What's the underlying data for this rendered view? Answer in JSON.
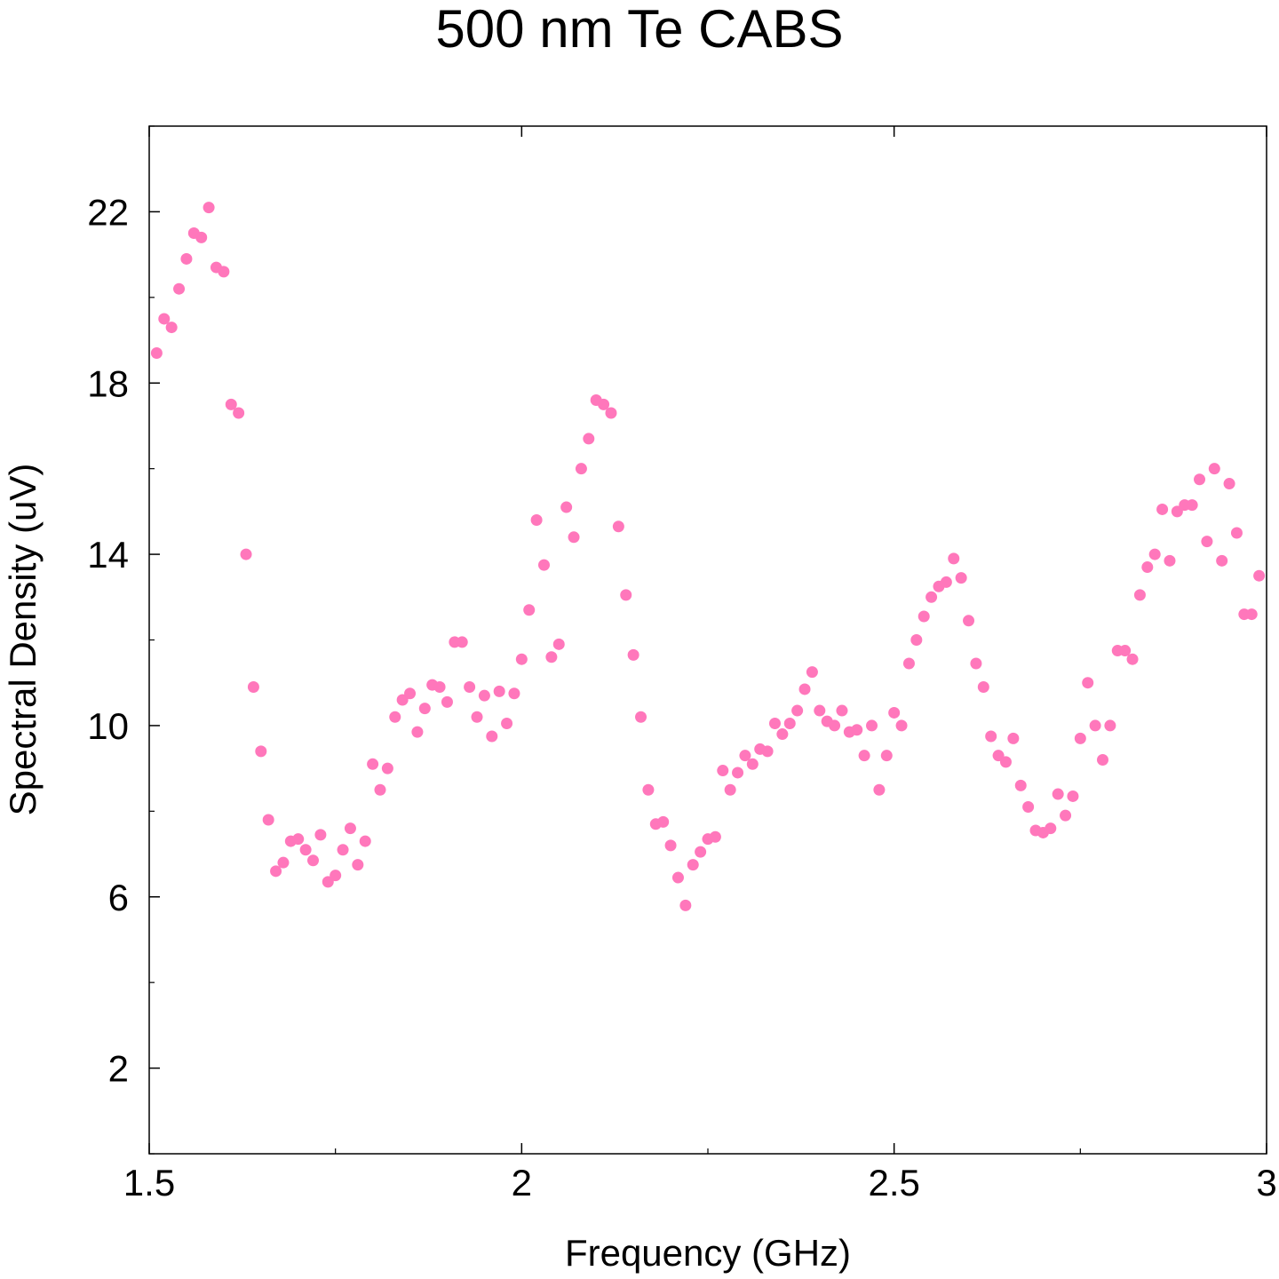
{
  "chart_data": {
    "type": "scatter",
    "title": "500 nm Te CABS",
    "xlabel": "Frequency (GHz)",
    "ylabel": "Spectral Density (uV)",
    "xlim": [
      1.5,
      3.0
    ],
    "ylim": [
      0.0,
      24.0
    ],
    "xticks": [
      1.5,
      2,
      2.5,
      3
    ],
    "xtick_labels": [
      "1.5",
      "2",
      "2.5",
      "3"
    ],
    "yticks": [
      2,
      6,
      10,
      14,
      18,
      22
    ],
    "ytick_labels": [
      "2",
      "6",
      "10",
      "14",
      "18",
      "22"
    ],
    "grid": false,
    "marker_color": "#ff77bb",
    "series": [
      {
        "x": [
          1.51,
          1.52,
          1.53,
          1.54,
          1.55,
          1.56,
          1.57,
          1.58,
          1.59,
          1.6,
          1.61,
          1.62,
          1.63,
          1.64,
          1.65,
          1.66,
          1.67,
          1.68,
          1.69,
          1.7,
          1.71,
          1.72,
          1.73,
          1.74,
          1.75,
          1.76,
          1.77,
          1.78,
          1.79,
          1.8,
          1.81,
          1.82,
          1.83,
          1.84,
          1.85,
          1.86,
          1.87,
          1.88,
          1.89,
          1.9,
          1.91,
          1.92,
          1.93,
          1.94,
          1.95,
          1.96,
          1.97,
          1.98,
          1.99,
          2.0,
          2.01,
          2.02,
          2.03,
          2.04,
          2.05,
          2.06,
          2.07,
          2.08,
          2.09,
          2.1,
          2.11,
          2.12,
          2.13,
          2.14,
          2.15,
          2.16,
          2.17,
          2.18,
          2.19,
          2.2,
          2.21,
          2.22,
          2.23,
          2.24,
          2.25,
          2.26,
          2.27,
          2.28,
          2.29,
          2.3,
          2.31,
          2.32,
          2.33,
          2.34,
          2.35,
          2.36,
          2.37,
          2.38,
          2.39,
          2.4,
          2.41,
          2.42,
          2.43,
          2.44,
          2.45,
          2.46,
          2.47,
          2.48,
          2.49,
          2.5,
          2.51,
          2.52,
          2.53,
          2.54,
          2.55,
          2.56,
          2.57,
          2.58,
          2.59,
          2.6,
          2.61,
          2.62,
          2.63,
          2.64,
          2.65,
          2.66,
          2.67,
          2.68,
          2.69,
          2.7,
          2.71,
          2.72,
          2.73,
          2.74,
          2.75,
          2.76,
          2.77,
          2.78,
          2.79,
          2.8,
          2.81,
          2.82,
          2.83,
          2.84,
          2.85,
          2.86,
          2.87,
          2.88,
          2.89,
          2.9,
          2.91,
          2.92,
          2.93,
          2.94,
          2.95,
          2.96,
          2.97,
          2.98,
          2.99
        ],
        "y": [
          18.7,
          19.5,
          19.3,
          20.2,
          20.9,
          21.5,
          21.4,
          22.1,
          20.7,
          20.6,
          17.5,
          17.3,
          14.0,
          10.9,
          9.4,
          7.8,
          6.6,
          6.8,
          7.3,
          7.35,
          7.1,
          6.85,
          7.45,
          6.35,
          6.5,
          7.1,
          7.6,
          6.75,
          7.3,
          9.1,
          8.5,
          9.0,
          10.2,
          10.6,
          10.75,
          9.85,
          10.4,
          10.95,
          10.9,
          10.55,
          11.95,
          11.95,
          10.9,
          10.2,
          10.7,
          9.75,
          10.8,
          10.05,
          10.75,
          11.55,
          12.7,
          14.8,
          13.75,
          11.6,
          11.9,
          15.1,
          14.4,
          16.0,
          16.7,
          17.6,
          17.5,
          17.3,
          14.65,
          13.05,
          11.65,
          10.2,
          8.5,
          7.7,
          7.75,
          7.2,
          6.45,
          5.8,
          6.75,
          7.05,
          7.35,
          7.4,
          8.95,
          8.5,
          8.9,
          9.3,
          9.1,
          9.45,
          9.4,
          10.05,
          9.8,
          10.05,
          10.35,
          10.85,
          11.25,
          10.35,
          10.1,
          10.0,
          10.35,
          9.85,
          9.9,
          9.3,
          10.0,
          8.5,
          9.3,
          10.3,
          10.0,
          11.45,
          12.0,
          12.55,
          13.0,
          13.25,
          13.35,
          13.9,
          13.45,
          12.45,
          11.45,
          10.9,
          9.75,
          9.3,
          9.15,
          9.7,
          8.6,
          8.1,
          7.55,
          7.5,
          7.6,
          8.4,
          7.9,
          8.35,
          9.7,
          11.0,
          10.0,
          9.2,
          10.0,
          11.75,
          11.75,
          11.55,
          13.05,
          13.7,
          14.0,
          15.05,
          13.85,
          15.0,
          15.15,
          15.15,
          15.75,
          14.3,
          16.0,
          13.85,
          15.65,
          14.5,
          12.6,
          12.6,
          13.5
        ]
      }
    ]
  }
}
